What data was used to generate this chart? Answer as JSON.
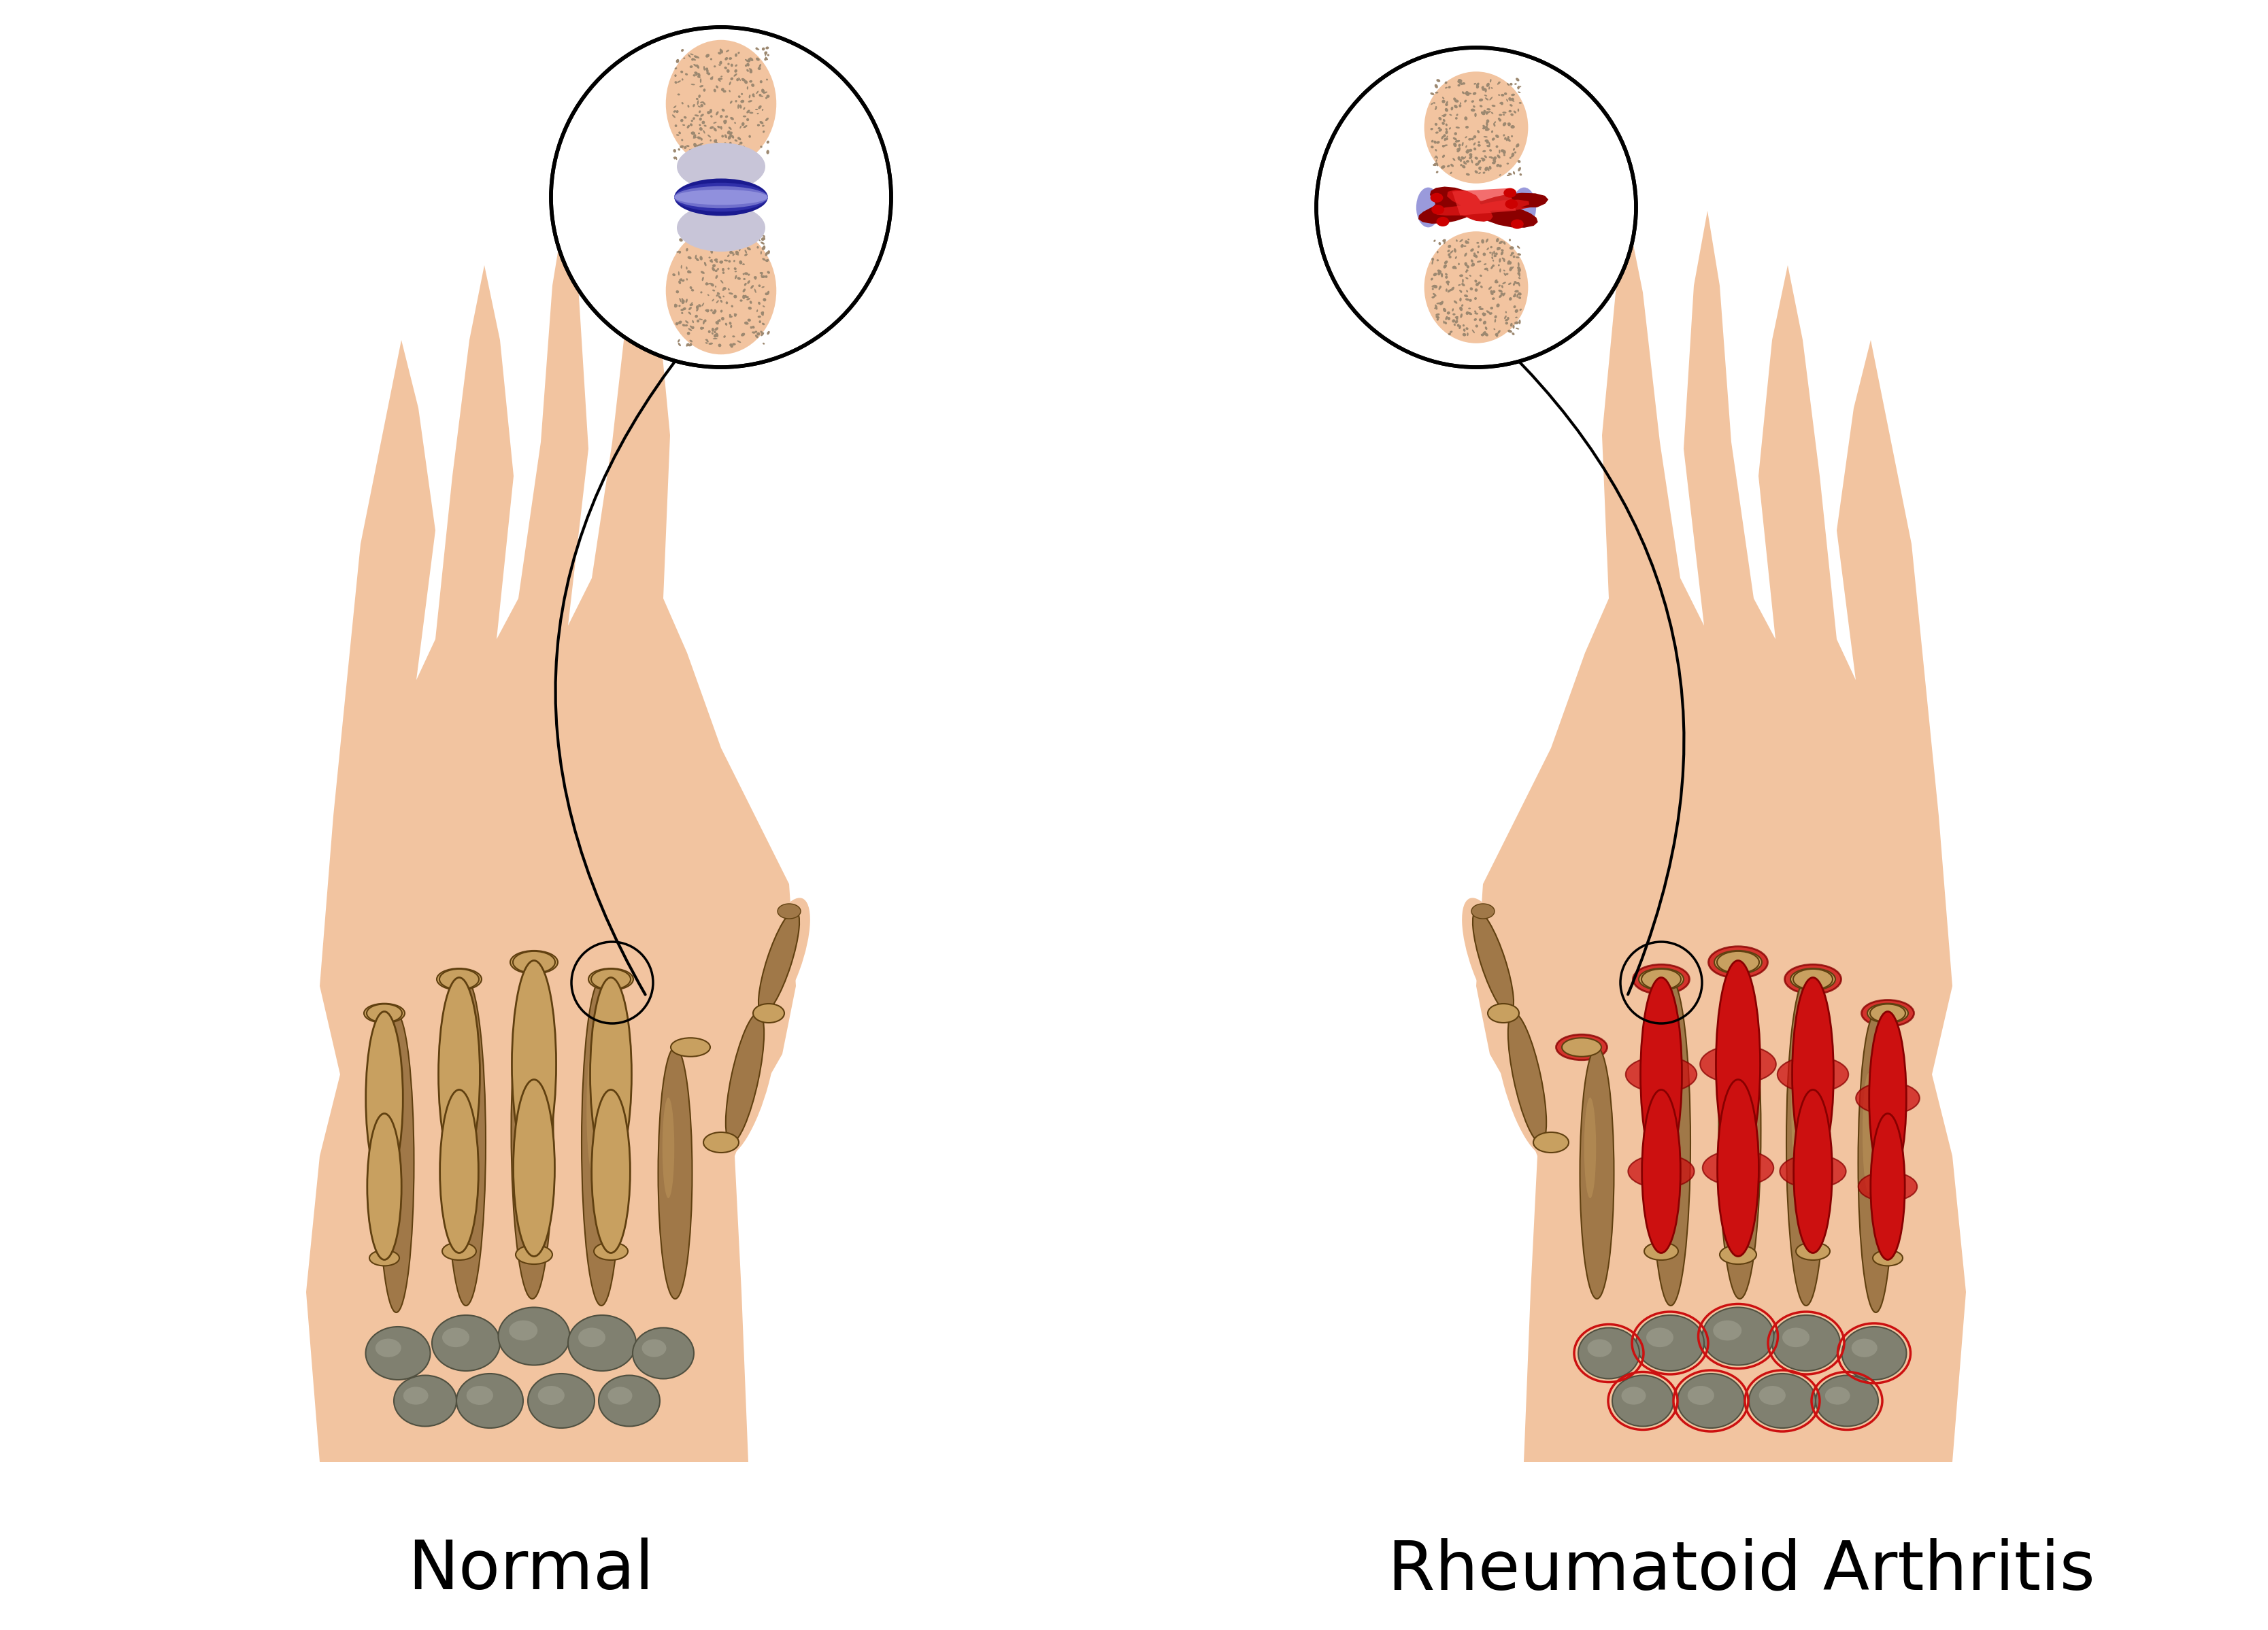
{
  "title_left": "Normal",
  "title_right": "Rheumatoid Arthritis",
  "title_fontsize": 72,
  "background_color": "#ffffff",
  "skin_color": "#F2C4A0",
  "skin_edge": "#E8AA82",
  "bone_color": "#A07848",
  "bone_mid": "#B8904A",
  "bone_light": "#C8A060",
  "bone_dark": "#704820",
  "bone_edge": "#604010",
  "wrist_color": "#808070",
  "wrist_light": "#A0A090",
  "wrist_dark": "#505040",
  "red_inflam": "#CC1010",
  "red_bright": "#EE3030",
  "red_dark": "#880000",
  "blue_dark": "#1A1A90",
  "blue_mid": "#3030AA",
  "blue_light": "#7070CC",
  "blue_pale": "#9090DD",
  "synovial_color": "#C8C5D8",
  "bone_texture": "#C0A880",
  "dot_color": "#9C8870"
}
